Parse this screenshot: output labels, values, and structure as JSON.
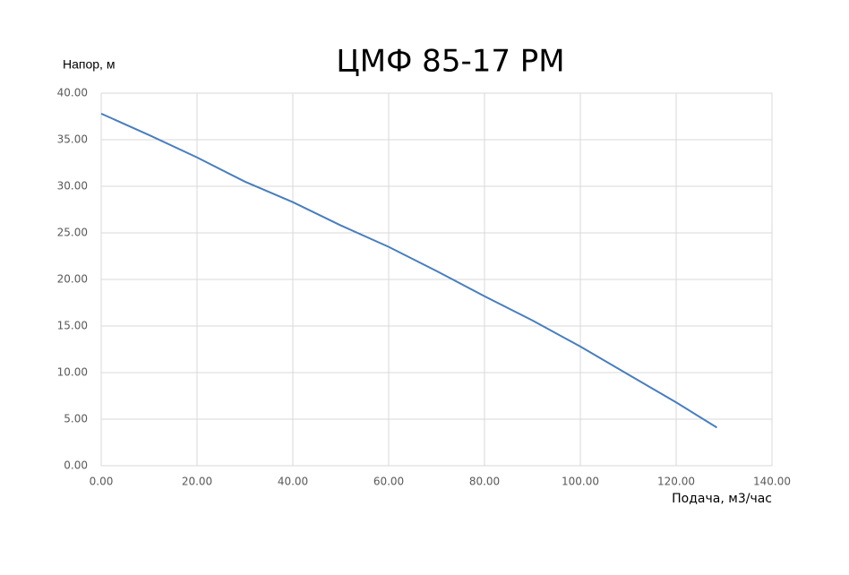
{
  "chart_data": {
    "type": "line",
    "title": "ЦМФ 85-17 РМ",
    "y_label": "Напор, м",
    "x_label": "Подача, м3/час",
    "x": [
      0,
      10,
      20,
      30,
      40,
      50,
      60,
      70,
      80,
      90,
      100,
      110,
      120,
      128.5
    ],
    "series": [
      {
        "name": "ЦМФ 85-17 РМ",
        "color": "#4a7ebb",
        "values": [
          37.8,
          35.5,
          33.1,
          30.5,
          28.3,
          25.8,
          23.5,
          20.9,
          18.2,
          15.6,
          12.8,
          9.8,
          6.8,
          4.1
        ]
      }
    ],
    "xlim": [
      0,
      140
    ],
    "ylim": [
      0,
      40
    ],
    "xticks": [
      {
        "value": 0,
        "label": "0.00"
      },
      {
        "value": 20,
        "label": "20.00"
      },
      {
        "value": 40,
        "label": "40.00"
      },
      {
        "value": 60,
        "label": "60.00"
      },
      {
        "value": 80,
        "label": "80.00"
      },
      {
        "value": 100,
        "label": "100.00"
      },
      {
        "value": 120,
        "label": "120.00"
      },
      {
        "value": 140,
        "label": "140.00"
      }
    ],
    "yticks": [
      {
        "value": 0,
        "label": "0.00"
      },
      {
        "value": 5,
        "label": "5.00"
      },
      {
        "value": 10,
        "label": "10.00"
      },
      {
        "value": 15,
        "label": "15.00"
      },
      {
        "value": 20,
        "label": "20.00"
      },
      {
        "value": 25,
        "label": "25.00"
      },
      {
        "value": 30,
        "label": "30.00"
      },
      {
        "value": 35,
        "label": "35.00"
      },
      {
        "value": 40,
        "label": "40.00"
      }
    ],
    "grid": true
  }
}
